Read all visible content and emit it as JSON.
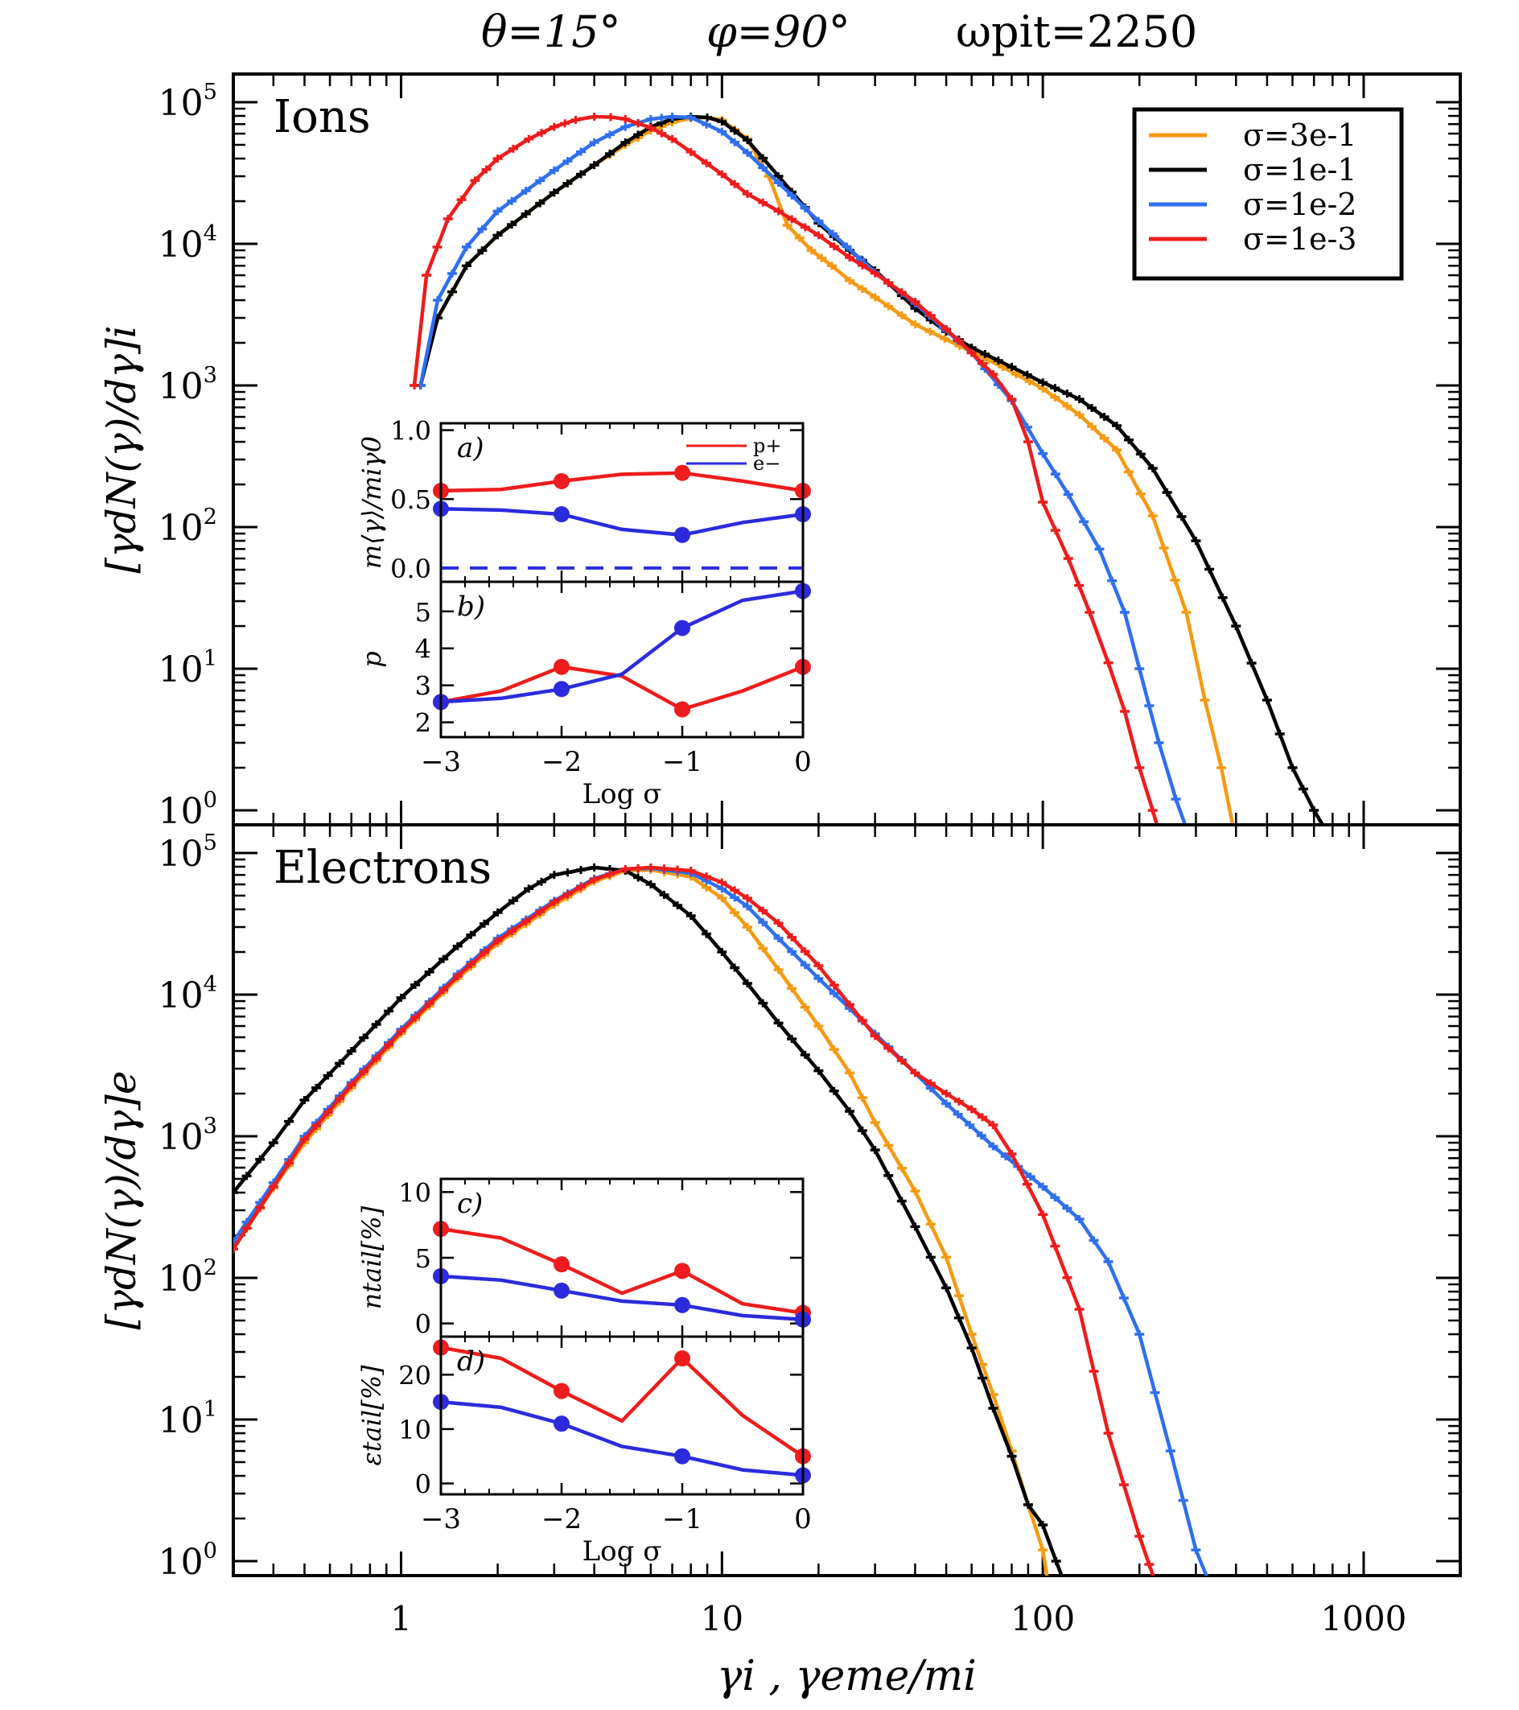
{
  "figure_title": {
    "theta": "θ=15°",
    "phi": "φ=90°",
    "time": "ωpit=2250"
  },
  "colors": {
    "sigma_3e-1": "#f59a12",
    "sigma_1e-1": "#000000",
    "sigma_1e-2": "#2f6ff0",
    "sigma_1e-3": "#ee1c1c",
    "inset_p": "#ee1c1c",
    "inset_e": "#2b2bdd"
  },
  "legend": [
    "σ=3e-1",
    "σ=1e-1",
    "σ=1e-2",
    "σ=1e-3"
  ],
  "chart_data": [
    {
      "id": "ions",
      "type": "line",
      "panel_label": "Ions",
      "ylabel": "[γdN(γ)/dγ]i",
      "xscale": "log",
      "yscale": "log",
      "xlim": [
        0.3,
        2000
      ],
      "ylim": [
        0.6,
        200000
      ],
      "yticks": [
        "10^0",
        "10^1",
        "10^2",
        "10^3",
        "10^4",
        "10^5"
      ],
      "series": [
        {
          "name": "σ=3e-1",
          "x": [
            1.15,
            1.3,
            1.6,
            2,
            3,
            4,
            5,
            6,
            7,
            8,
            9,
            10,
            12,
            14,
            16,
            19,
            22,
            25,
            30,
            40,
            55,
            75,
            100,
            130,
            170,
            220,
            280,
            320,
            360,
            400
          ],
          "y": [
            1000,
            3000,
            7000,
            11500,
            23000,
            36000,
            50000,
            63000,
            72000,
            77000,
            78000,
            75000,
            55000,
            30000,
            13500,
            9000,
            7000,
            5500,
            4200,
            2700,
            1900,
            1350,
            950,
            620,
            350,
            120,
            25,
            6,
            2,
            0.6
          ]
        },
        {
          "name": "σ=1e-1",
          "x": [
            1.15,
            1.3,
            1.6,
            2,
            3,
            4,
            5,
            6,
            7,
            8,
            9,
            10,
            12,
            15,
            20,
            25,
            30,
            40,
            50,
            60,
            80,
            100,
            130,
            170,
            220,
            300,
            400,
            500,
            600,
            700,
            800
          ],
          "y": [
            1000,
            3000,
            7000,
            11500,
            23000,
            36000,
            52000,
            67000,
            76000,
            79000,
            78000,
            73000,
            54000,
            30000,
            14000,
            9000,
            6500,
            3500,
            2400,
            1850,
            1350,
            1050,
            800,
            520,
            260,
            80,
            20,
            6,
            2,
            1,
            0.6
          ]
        },
        {
          "name": "σ=1e-2",
          "x": [
            1.15,
            1.3,
            1.6,
            2,
            3,
            4,
            5,
            6,
            7,
            8,
            10,
            12,
            15,
            20,
            30,
            40,
            60,
            80,
            100,
            120,
            150,
            180,
            200,
            230,
            260,
            290
          ],
          "y": [
            1000,
            4000,
            9500,
            17000,
            33000,
            52000,
            67000,
            76000,
            79000,
            78000,
            62000,
            44000,
            27000,
            14500,
            6300,
            3800,
            1700,
            780,
            330,
            170,
            70,
            25,
            10,
            3,
            1.2,
            0.6
          ]
        },
        {
          "name": "σ=1e-3",
          "x": [
            1.1,
            1.2,
            1.4,
            1.7,
            2,
            2.5,
            3,
            3.5,
            4,
            4.5,
            5,
            6,
            7,
            8,
            10,
            12,
            15,
            20,
            25,
            30,
            40,
            50,
            60,
            70,
            80,
            90,
            100,
            120,
            140,
            160,
            180,
            200,
            220,
            235
          ],
          "y": [
            1000,
            6000,
            15000,
            28000,
            40000,
            55000,
            67000,
            75000,
            79000,
            78500,
            76000,
            66000,
            55000,
            44500,
            31000,
            22500,
            17000,
            11500,
            8000,
            6200,
            3900,
            2500,
            1700,
            1200,
            800,
            400,
            150,
            60,
            25,
            11,
            5,
            2,
            1,
            0.6
          ]
        }
      ]
    },
    {
      "id": "electrons",
      "type": "line",
      "panel_label": "Electrons",
      "ylabel": "[γdN(γ)/dγ]e",
      "xscale": "log",
      "yscale": "log",
      "xlim": [
        0.3,
        2000
      ],
      "ylim": [
        0.6,
        200000
      ],
      "yticks": [
        "10^0",
        "10^1",
        "10^2",
        "10^3",
        "10^4",
        "10^5"
      ],
      "xticks": [
        "1",
        "10",
        "100",
        "1000"
      ],
      "xlabel": "γi , γeme/mi",
      "series": [
        {
          "name": "σ=3e-1",
          "x": [
            0.3,
            0.4,
            0.5,
            0.7,
            1,
            1.5,
            2,
            3,
            4,
            5,
            6,
            8,
            10,
            12,
            15,
            20,
            25,
            30,
            40,
            50,
            60,
            70,
            80,
            90,
            100,
            105
          ],
          "y": [
            160,
            430,
            900,
            2200,
            5300,
            13000,
            23000,
            43000,
            63000,
            75000,
            76000,
            68000,
            48000,
            30000,
            15000,
            6000,
            2800,
            1250,
            410,
            140,
            40,
            15,
            6,
            2.5,
            1.2,
            0.6
          ]
        },
        {
          "name": "σ=1e-1",
          "x": [
            0.3,
            0.4,
            0.5,
            0.7,
            1,
            1.5,
            2,
            2.5,
            3,
            4,
            5,
            6,
            8,
            10,
            12,
            15,
            20,
            25,
            30,
            40,
            50,
            60,
            70,
            80,
            90,
            100,
            110,
            120
          ],
          "y": [
            400,
            900,
            1800,
            4000,
            9500,
            22000,
            38000,
            56000,
            70000,
            79000,
            75000,
            60000,
            36000,
            20000,
            12000,
            6300,
            2900,
            1500,
            800,
            230,
            85,
            32,
            12,
            5.5,
            2.5,
            1.8,
            1,
            0.6
          ]
        },
        {
          "name": "σ=1e-2",
          "x": [
            0.3,
            0.4,
            0.5,
            0.7,
            1,
            1.5,
            2,
            3,
            4,
            5,
            6,
            8,
            10,
            12,
            15,
            20,
            25,
            30,
            40,
            50,
            70,
            100,
            130,
            160,
            200,
            250,
            300,
            340
          ],
          "y": [
            180,
            470,
            1000,
            2400,
            5700,
            14000,
            25000,
            46000,
            66000,
            77000,
            78000,
            72000,
            56000,
            42000,
            25000,
            13000,
            8000,
            5300,
            2800,
            1700,
            850,
            440,
            260,
            130,
            40,
            6,
            1.2,
            0.6
          ]
        },
        {
          "name": "σ=1e-3",
          "x": [
            0.3,
            0.4,
            0.5,
            0.7,
            1,
            1.5,
            2,
            3,
            4,
            5,
            6,
            8,
            10,
            12,
            15,
            20,
            25,
            30,
            40,
            50,
            60,
            70,
            80,
            100,
            130,
            160,
            200,
            230
          ],
          "y": [
            160,
            440,
            950,
            2300,
            5500,
            13500,
            24000,
            45000,
            65000,
            77000,
            79000,
            75000,
            62000,
            48000,
            32000,
            16000,
            8500,
            5100,
            2800,
            2000,
            1550,
            1200,
            750,
            280,
            60,
            8,
            1.5,
            0.6
          ]
        }
      ]
    },
    {
      "id": "inset-a",
      "type": "line",
      "panel_label": "a)",
      "ylabel": "m⟨γ⟩/miγ0",
      "xlim": [
        -3,
        0
      ],
      "ylim": [
        -0.1,
        1.05
      ],
      "yticks": [
        "0.0",
        "0.5",
        "1.0"
      ],
      "legend": [
        "p+",
        "e−"
      ],
      "series": [
        {
          "name": "p+",
          "x": [
            -3,
            -2.5,
            -2,
            -1.5,
            -1,
            -0.5,
            0
          ],
          "y": [
            0.56,
            0.57,
            0.63,
            0.68,
            0.69,
            0.63,
            0.56
          ],
          "markers": [
            -3,
            -2,
            -1,
            0
          ]
        },
        {
          "name": "e−",
          "x": [
            -3,
            -2.5,
            -2,
            -1.5,
            -1,
            -0.5,
            0
          ],
          "y": [
            0.43,
            0.42,
            0.39,
            0.28,
            0.24,
            0.33,
            0.39
          ],
          "markers": [
            -3,
            -2,
            -1,
            0
          ]
        }
      ],
      "hline": 0.0
    },
    {
      "id": "inset-b",
      "type": "line",
      "panel_label": "b)",
      "ylabel": "p",
      "xlim": [
        -3,
        0
      ],
      "ylim": [
        1.6,
        5.8
      ],
      "yticks": [
        "2",
        "3",
        "4",
        "5"
      ],
      "xticks": [
        "−3",
        "−2",
        "−1",
        "0"
      ],
      "xlabel": "Log σ",
      "series": [
        {
          "name": "p+",
          "x": [
            -3,
            -2.5,
            -2,
            -1.5,
            -1,
            -0.5,
            0
          ],
          "y": [
            2.55,
            2.85,
            3.5,
            3.25,
            2.35,
            2.85,
            3.5
          ],
          "markers": [
            -3,
            -2,
            -1,
            0
          ]
        },
        {
          "name": "e−",
          "x": [
            -3,
            -2.5,
            -2,
            -1.5,
            -1,
            -0.5,
            0
          ],
          "y": [
            2.55,
            2.65,
            2.9,
            3.3,
            4.55,
            5.3,
            5.55
          ],
          "markers": [
            -3,
            -2,
            -1,
            0
          ]
        }
      ]
    },
    {
      "id": "inset-c",
      "type": "line",
      "panel_label": "c)",
      "ylabel": "ntail[%]",
      "xlim": [
        -3,
        0
      ],
      "ylim": [
        -1,
        11
      ],
      "yticks": [
        "0",
        "5",
        "10"
      ],
      "series": [
        {
          "name": "p+",
          "x": [
            -3,
            -2.5,
            -2,
            -1.5,
            -1,
            -0.5,
            0
          ],
          "y": [
            7.2,
            6.5,
            4.5,
            2.3,
            4.0,
            1.5,
            0.8
          ],
          "markers": [
            -3,
            -2,
            -1,
            0
          ]
        },
        {
          "name": "e−",
          "x": [
            -3,
            -2.5,
            -2,
            -1.5,
            -1,
            -0.5,
            0
          ],
          "y": [
            3.6,
            3.3,
            2.5,
            1.7,
            1.4,
            0.6,
            0.3
          ],
          "markers": [
            -3,
            -2,
            -1,
            0
          ]
        }
      ]
    },
    {
      "id": "inset-d",
      "type": "line",
      "panel_label": "d)",
      "ylabel": "εtail[%]",
      "xlim": [
        -3,
        0
      ],
      "ylim": [
        -2,
        27
      ],
      "yticks": [
        "0",
        "10",
        "20"
      ],
      "xticks": [
        "−3",
        "−2",
        "−1",
        "0"
      ],
      "xlabel": "Log σ",
      "series": [
        {
          "name": "p+",
          "x": [
            -3,
            -2.5,
            -2,
            -1.5,
            -1,
            -0.5,
            0
          ],
          "y": [
            25,
            23,
            17,
            11.5,
            23,
            12.5,
            5
          ],
          "markers": [
            -3,
            -2,
            -1,
            0
          ]
        },
        {
          "name": "e−",
          "x": [
            -3,
            -2.5,
            -2,
            -1.5,
            -1,
            -0.5,
            0
          ],
          "y": [
            15,
            14,
            11,
            6.8,
            5,
            2.5,
            1.5
          ],
          "markers": [
            -3,
            -2,
            -1,
            0
          ]
        }
      ]
    }
  ]
}
